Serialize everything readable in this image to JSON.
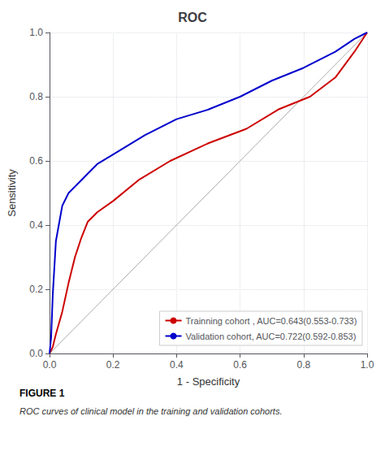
{
  "chart_data": {
    "type": "line",
    "title": "ROC",
    "xlabel": "1 - Specificity",
    "ylabel": "Sensitivity",
    "xlim": [
      0.0,
      1.0
    ],
    "ylim": [
      0.0,
      1.0
    ],
    "xticks": [
      {
        "value": 0,
        "label": "0.0"
      },
      0.2,
      0.4,
      0.6,
      0.8,
      {
        "value": 1,
        "label": "1.0"
      }
    ],
    "yticks": [
      {
        "value": 0,
        "label": "0.0"
      },
      0.2,
      0.4,
      0.6,
      0.8,
      {
        "value": 1,
        "label": "1.0"
      }
    ],
    "grid": true,
    "legend": "lower right",
    "series": [
      {
        "x": [
          0,
          1
        ],
        "values": [
          0,
          1
        ],
        "color": "#aaaaaa"
      },
      {
        "name": "Trainning cohort , AUC=0.643(0.553-0.733)",
        "color": "#cc0000",
        "x": [
          0.0,
          0.01,
          0.02,
          0.04,
          0.06,
          0.08,
          0.1,
          0.12,
          0.15,
          0.2,
          0.28,
          0.38,
          0.5,
          0.62,
          0.72,
          0.82,
          0.9,
          0.96,
          1.0
        ],
        "values": [
          0.0,
          0.02,
          0.06,
          0.13,
          0.22,
          0.3,
          0.36,
          0.41,
          0.44,
          0.475,
          0.54,
          0.6,
          0.655,
          0.7,
          0.76,
          0.8,
          0.86,
          0.94,
          1.0
        ]
      },
      {
        "name": "Validation cohort, AUC=0.722(0.592-0.853)",
        "color": "#0000cc",
        "x": [
          0.0,
          0.005,
          0.01,
          0.02,
          0.04,
          0.06,
          0.08,
          0.1,
          0.12,
          0.15,
          0.2,
          0.3,
          0.4,
          0.5,
          0.6,
          0.7,
          0.8,
          0.9,
          0.96,
          1.0
        ],
        "values": [
          0.0,
          0.05,
          0.18,
          0.35,
          0.46,
          0.5,
          0.52,
          0.54,
          0.56,
          0.59,
          0.62,
          0.68,
          0.73,
          0.76,
          0.8,
          0.85,
          0.89,
          0.94,
          0.98,
          1.0
        ]
      }
    ],
    "annotations": [
      "FIGURE 1",
      "ROC curves of clinical model in the training and validation cohorts."
    ]
  }
}
